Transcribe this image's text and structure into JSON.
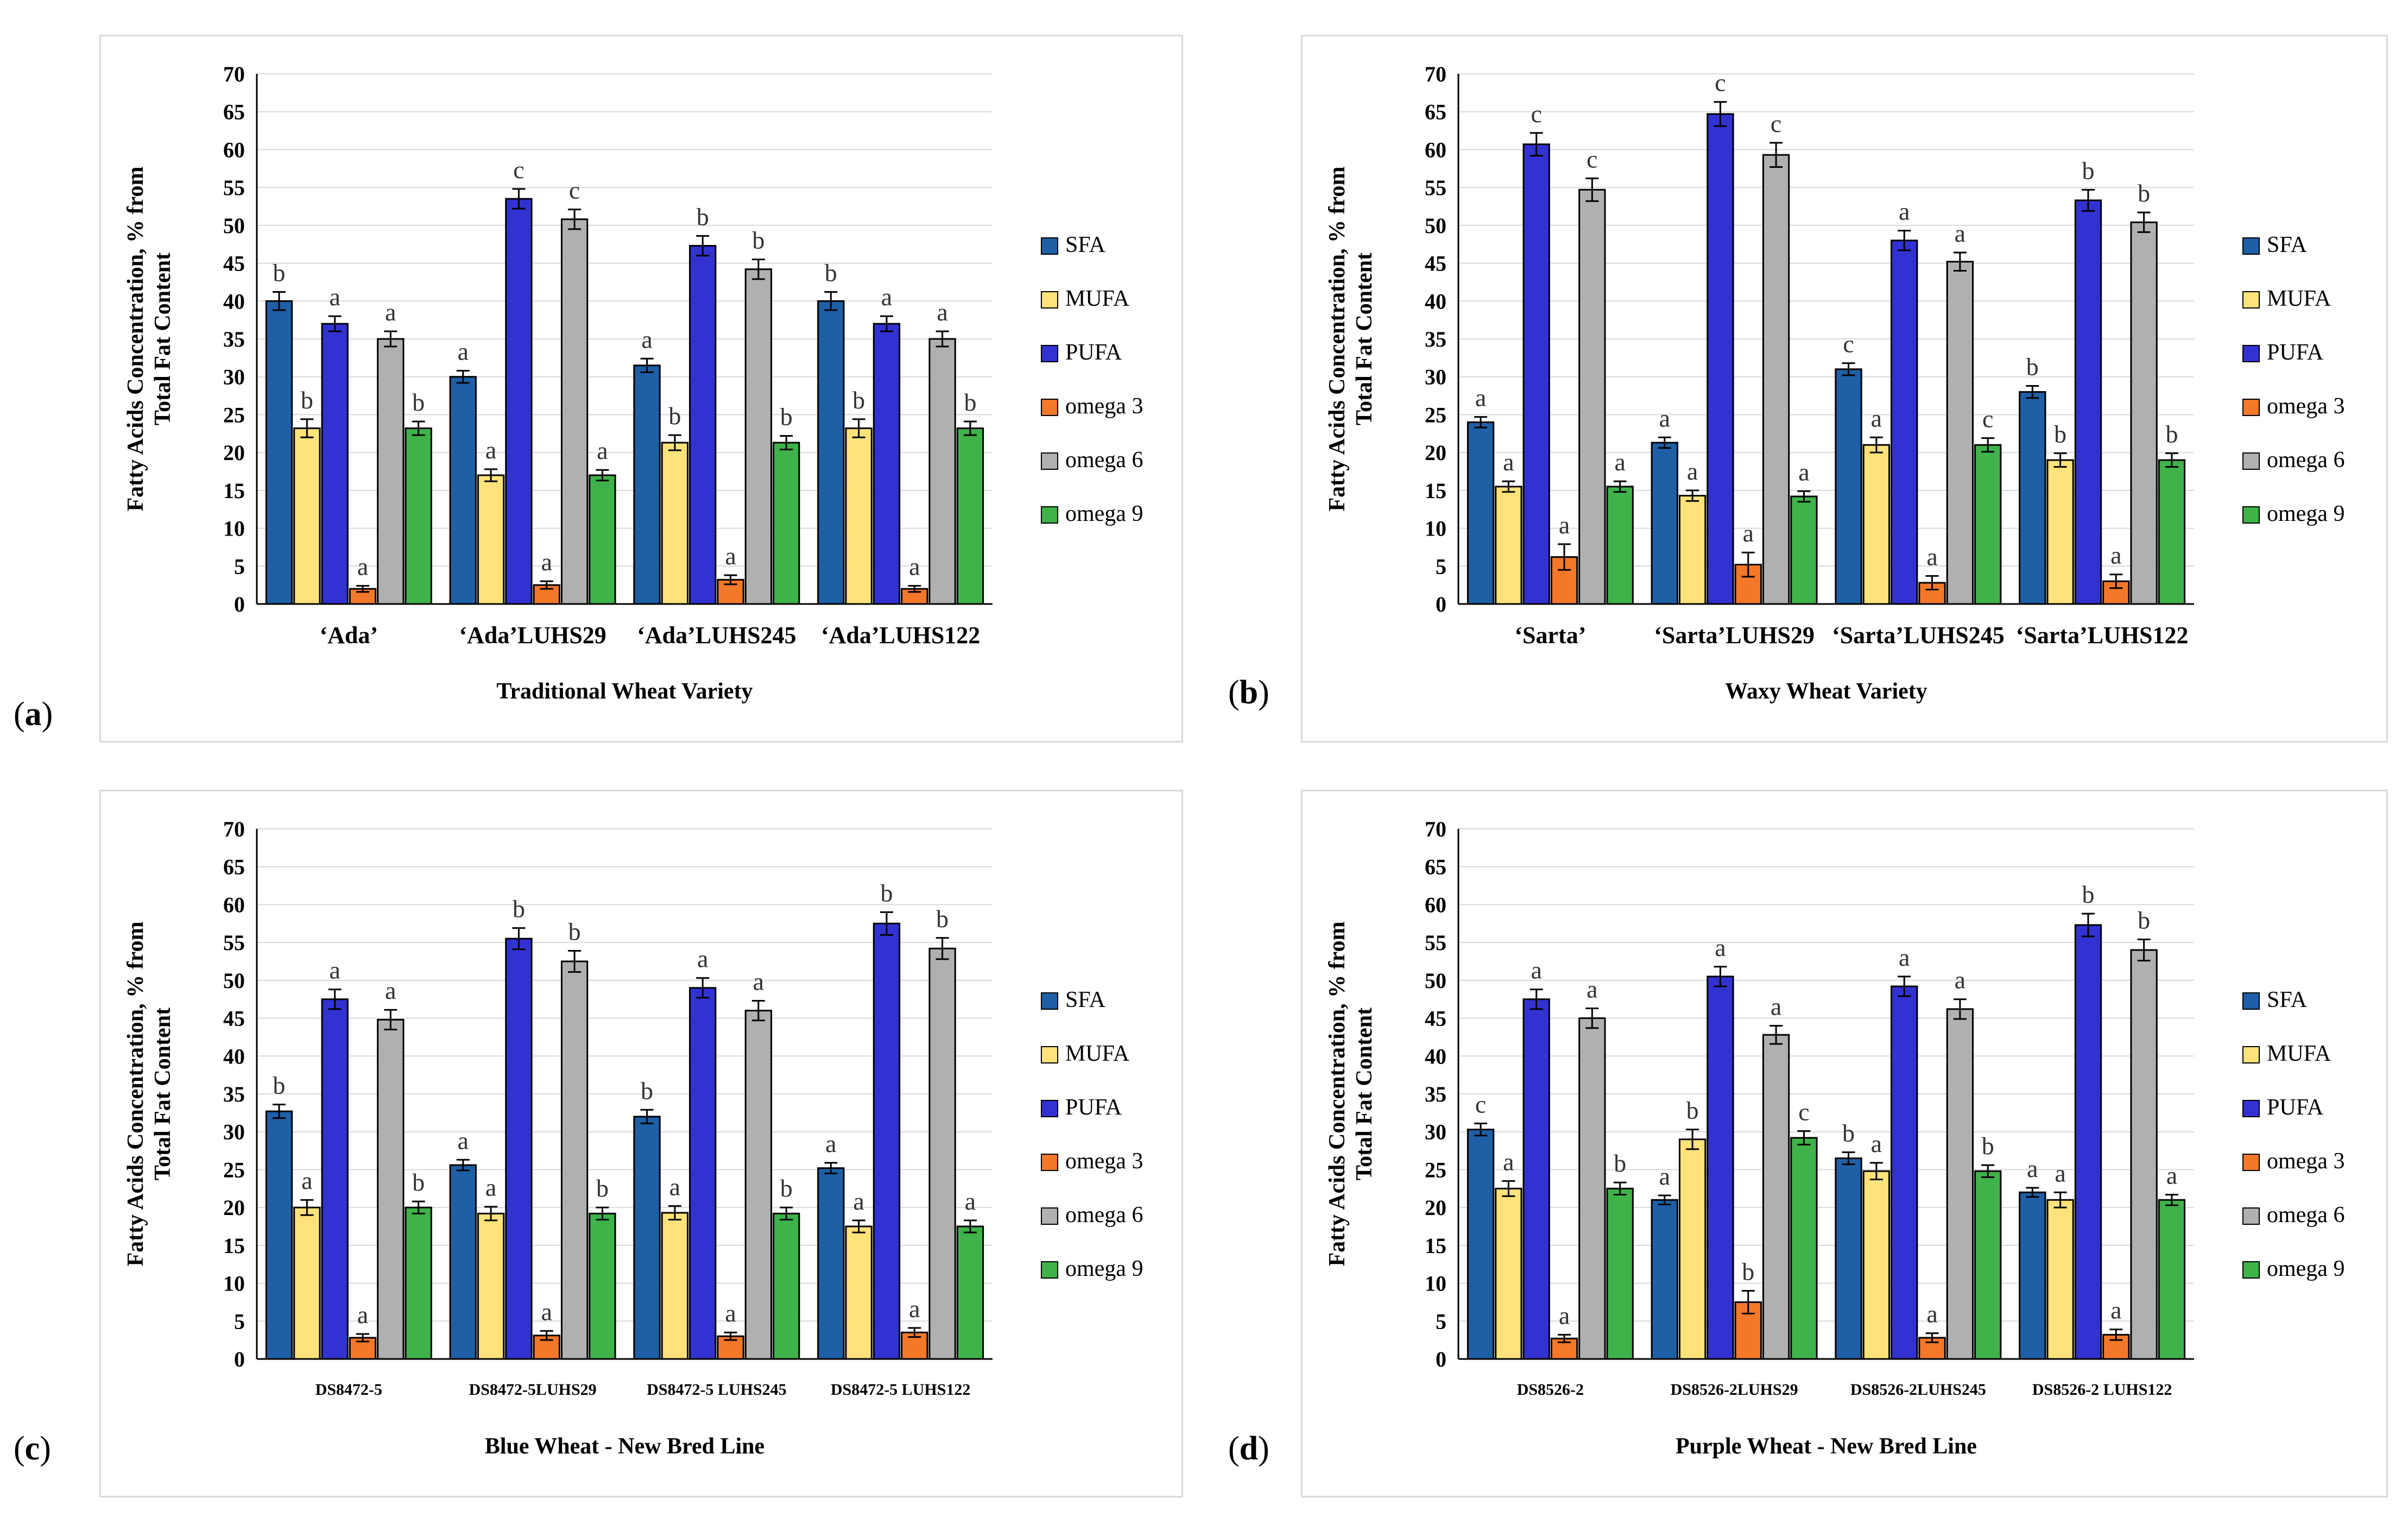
{
  "legend_series": [
    "SFA",
    "MUFA",
    "PUFA",
    "omega 3",
    "omega 6",
    "omega 9"
  ],
  "colors": {
    "SFA": "#1f5fa6",
    "MUFA": "#ffe27a",
    "PUFA": "#3232d2",
    "omega 3": "#f4782a",
    "omega 6": "#b0b0b0",
    "omega 9": "#3fb24a"
  },
  "panels": [
    {
      "letter": "a",
      "xlabel": "Traditional Wheat Variety"
    },
    {
      "letter": "b",
      "xlabel": "Waxy Wheat Variety"
    },
    {
      "letter": "c",
      "xlabel": "Blue Wheat - New Bred Line"
    },
    {
      "letter": "d",
      "xlabel": "Purple Wheat - New Bred Line"
    }
  ],
  "chart_data": [
    {
      "type": "bar",
      "ylabel": "Fatty Acids Concentration, % from Total Fat Content",
      "xlabel": "Traditional Wheat Variety",
      "ylim": [
        0,
        70
      ],
      "yticks": [
        0,
        5,
        10,
        15,
        20,
        25,
        30,
        35,
        40,
        45,
        50,
        55,
        60,
        65,
        70
      ],
      "categories": [
        "‘Ada’",
        "‘Ada’LUHS29",
        "‘Ada’LUHS245",
        "‘Ada’LUHS122"
      ],
      "series": [
        {
          "name": "SFA",
          "values": [
            40,
            30,
            31.5,
            40
          ],
          "errors": [
            1.2,
            0.8,
            0.9,
            1.2
          ],
          "labels": [
            "b",
            "a",
            "a",
            "b"
          ]
        },
        {
          "name": "MUFA",
          "values": [
            23.2,
            17,
            21.3,
            23.2
          ],
          "errors": [
            1.2,
            0.8,
            1.0,
            1.2
          ],
          "labels": [
            "b",
            "a",
            "b",
            "b"
          ]
        },
        {
          "name": "PUFA",
          "values": [
            37,
            53.5,
            47.3,
            37
          ],
          "errors": [
            1.0,
            1.3,
            1.3,
            1.0
          ],
          "labels": [
            "a",
            "c",
            "b",
            "a"
          ]
        },
        {
          "name": "omega 3",
          "values": [
            2,
            2.5,
            3.2,
            2
          ],
          "errors": [
            0.4,
            0.5,
            0.6,
            0.4
          ],
          "labels": [
            "a",
            "a",
            "a",
            "a"
          ]
        },
        {
          "name": "omega 6",
          "values": [
            35,
            50.8,
            44.2,
            35
          ],
          "errors": [
            1.0,
            1.3,
            1.3,
            1.0
          ],
          "labels": [
            "a",
            "c",
            "b",
            "a"
          ]
        },
        {
          "name": "omega 9",
          "values": [
            23.2,
            17,
            21.3,
            23.2
          ],
          "errors": [
            0.9,
            0.7,
            0.9,
            0.9
          ],
          "labels": [
            "b",
            "a",
            "b",
            "b"
          ]
        }
      ],
      "legend_position": "right"
    },
    {
      "type": "bar",
      "ylabel": "Fatty Acids Concentration, % from Total Fat Content",
      "xlabel": "Waxy Wheat Variety",
      "ylim": [
        0,
        70
      ],
      "yticks": [
        0,
        5,
        10,
        15,
        20,
        25,
        30,
        35,
        40,
        45,
        50,
        55,
        60,
        65,
        70
      ],
      "categories": [
        "‘Sarta’",
        "‘Sarta’LUHS29",
        "‘Sarta’LUHS245",
        "‘Sarta’LUHS122"
      ],
      "series": [
        {
          "name": "SFA",
          "values": [
            24,
            21.3,
            31,
            28
          ],
          "errors": [
            0.7,
            0.7,
            0.8,
            0.8
          ],
          "labels": [
            "a",
            "a",
            "c",
            "b"
          ]
        },
        {
          "name": "MUFA",
          "values": [
            15.5,
            14.3,
            21,
            19
          ],
          "errors": [
            0.7,
            0.7,
            1.0,
            0.9
          ],
          "labels": [
            "a",
            "a",
            "a",
            "b"
          ]
        },
        {
          "name": "PUFA",
          "values": [
            60.7,
            64.7,
            48,
            53.3
          ],
          "errors": [
            1.5,
            1.6,
            1.3,
            1.4
          ],
          "labels": [
            "c",
            "c",
            "a",
            "b"
          ]
        },
        {
          "name": "omega 3",
          "values": [
            6.2,
            5.2,
            2.8,
            3
          ],
          "errors": [
            1.7,
            1.6,
            0.9,
            0.9
          ],
          "labels": [
            "a",
            "a",
            "a",
            "a"
          ]
        },
        {
          "name": "omega 6",
          "values": [
            54.7,
            59.3,
            45.2,
            50.4
          ],
          "errors": [
            1.5,
            1.6,
            1.2,
            1.3
          ],
          "labels": [
            "c",
            "c",
            "a",
            "b"
          ]
        },
        {
          "name": "omega 9",
          "values": [
            15.5,
            14.2,
            21,
            19
          ],
          "errors": [
            0.7,
            0.7,
            0.9,
            0.9
          ],
          "labels": [
            "a",
            "a",
            "c",
            "b"
          ]
        }
      ],
      "legend_position": "right"
    },
    {
      "type": "bar",
      "ylabel": "Fatty Acids Concentration, % from Total Fat Content",
      "xlabel": "Blue Wheat - New Bred Line",
      "ylim": [
        0,
        70
      ],
      "yticks": [
        0,
        5,
        10,
        15,
        20,
        25,
        30,
        35,
        40,
        45,
        50,
        55,
        60,
        65,
        70
      ],
      "categories": [
        "DS8472-5",
        "DS8472-5LUHS29",
        "DS8472-5 LUHS245",
        "DS8472-5 LUHS122"
      ],
      "series": [
        {
          "name": "SFA",
          "values": [
            32.7,
            25.6,
            32,
            25.2
          ],
          "errors": [
            0.9,
            0.7,
            0.9,
            0.7
          ],
          "labels": [
            "b",
            "a",
            "b",
            "a"
          ]
        },
        {
          "name": "MUFA",
          "values": [
            20,
            19.2,
            19.3,
            17.5
          ],
          "errors": [
            1.0,
            0.9,
            0.9,
            0.8
          ],
          "labels": [
            "a",
            "a",
            "a",
            "a"
          ]
        },
        {
          "name": "PUFA",
          "values": [
            47.5,
            55.5,
            49,
            57.5
          ],
          "errors": [
            1.3,
            1.4,
            1.3,
            1.5
          ],
          "labels": [
            "a",
            "b",
            "a",
            "b"
          ]
        },
        {
          "name": "omega 3",
          "values": [
            2.8,
            3.1,
            3,
            3.5
          ],
          "errors": [
            0.5,
            0.6,
            0.5,
            0.6
          ],
          "labels": [
            "a",
            "a",
            "a",
            "a"
          ]
        },
        {
          "name": "omega 6",
          "values": [
            44.8,
            52.5,
            46,
            54.2
          ],
          "errors": [
            1.3,
            1.4,
            1.3,
            1.4
          ],
          "labels": [
            "a",
            "b",
            "a",
            "b"
          ]
        },
        {
          "name": "omega 9",
          "values": [
            20,
            19.2,
            19.2,
            17.5
          ],
          "errors": [
            0.8,
            0.8,
            0.8,
            0.8
          ],
          "labels": [
            "b",
            "b",
            "b",
            "a"
          ]
        }
      ],
      "legend_position": "right"
    },
    {
      "type": "bar",
      "ylabel": "Fatty Acids Concentration, % from Total Fat Content",
      "xlabel": "Purple Wheat - New Bred Line",
      "ylim": [
        0,
        70
      ],
      "yticks": [
        0,
        5,
        10,
        15,
        20,
        25,
        30,
        35,
        40,
        45,
        50,
        55,
        60,
        65,
        70
      ],
      "categories": [
        "DS8526-2",
        "DS8526-2LUHS29",
        "DS8526-2LUHS245",
        "DS8526-2 LUHS122"
      ],
      "series": [
        {
          "name": "SFA",
          "values": [
            30.3,
            21,
            26.5,
            22
          ],
          "errors": [
            0.8,
            0.6,
            0.8,
            0.6
          ],
          "labels": [
            "c",
            "a",
            "b",
            "a"
          ]
        },
        {
          "name": "MUFA",
          "values": [
            22.5,
            29,
            24.8,
            21
          ],
          "errors": [
            1.0,
            1.3,
            1.1,
            1.0
          ],
          "labels": [
            "a",
            "b",
            "a",
            "a"
          ]
        },
        {
          "name": "PUFA",
          "values": [
            47.5,
            50.5,
            49.2,
            57.3
          ],
          "errors": [
            1.3,
            1.3,
            1.3,
            1.5
          ],
          "labels": [
            "a",
            "a",
            "a",
            "b"
          ]
        },
        {
          "name": "omega 3",
          "values": [
            2.7,
            7.5,
            2.8,
            3.2
          ],
          "errors": [
            0.5,
            1.5,
            0.6,
            0.7
          ],
          "labels": [
            "a",
            "b",
            "a",
            "a"
          ]
        },
        {
          "name": "omega 6",
          "values": [
            45,
            42.8,
            46.2,
            54
          ],
          "errors": [
            1.3,
            1.2,
            1.3,
            1.4
          ],
          "labels": [
            "a",
            "a",
            "a",
            "b"
          ]
        },
        {
          "name": "omega 9",
          "values": [
            22.5,
            29.2,
            24.8,
            21
          ],
          "errors": [
            0.8,
            0.9,
            0.8,
            0.7
          ],
          "labels": [
            "b",
            "c",
            "b",
            "a"
          ]
        }
      ],
      "legend_position": "right"
    }
  ]
}
